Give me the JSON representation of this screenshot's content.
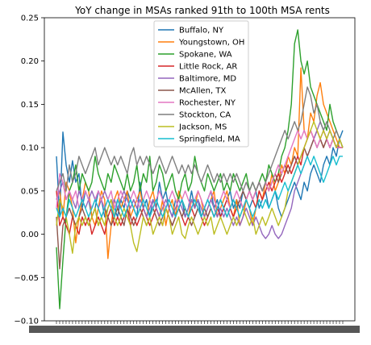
{
  "chart_data": {
    "type": "line",
    "title": "YoY change in MSAs ranked 91th to 100th MSA rents",
    "xlabel": "",
    "ylabel": "",
    "ylim": [
      -0.1,
      0.25
    ],
    "yticks": [
      -0.1,
      -0.05,
      0.0,
      0.05,
      0.1,
      0.15,
      0.2,
      0.25
    ],
    "ytick_labels": [
      "−0.10",
      "−0.05",
      "0.00",
      "0.05",
      "0.10",
      "0.15",
      "0.20",
      "0.25"
    ],
    "x_start": "2015-01",
    "x_end": "2022-03",
    "xtick_labels_note": "x tick labels are overlapping dates and illegible",
    "grid": false,
    "legend_position": "top-center",
    "series": [
      {
        "name": "Buffalo, NY",
        "color": "#1f77b4",
        "values": [
          0.09,
          0.02,
          0.118,
          0.08,
          0.06,
          0.085,
          0.06,
          0.07,
          0.03,
          0.05,
          0.04,
          0.02,
          0.03,
          0.05,
          0.04,
          0.02,
          0.03,
          0.04,
          0.03,
          0.02,
          0.04,
          0.03,
          0.05,
          0.04,
          0.03,
          0.02,
          0.06,
          0.03,
          0.04,
          0.02,
          0.04,
          0.03,
          0.06,
          0.04,
          0.05,
          0.03,
          0.02,
          0.04,
          0.03,
          0.04,
          0.02,
          0.03,
          0.05,
          0.03,
          0.04,
          0.02,
          0.03,
          0.04,
          0.05,
          0.03,
          0.04,
          0.02,
          0.03,
          0.04,
          0.05,
          0.03,
          0.04,
          0.03,
          0.05,
          0.04,
          0.03,
          0.04,
          0.05,
          0.03,
          0.04,
          0.05,
          0.03,
          0.04,
          0.05,
          0.03,
          0.02,
          0.03,
          0.04,
          0.05,
          0.06,
          0.05,
          0.04,
          0.06,
          0.05,
          0.07,
          0.08,
          0.07,
          0.06,
          0.08,
          0.09,
          0.08,
          0.1,
          0.09,
          0.11,
          0.12
        ]
      },
      {
        "name": "Youngstown, OH",
        "color": "#ff7f0e",
        "values": [
          0.04,
          0.05,
          0.02,
          0.06,
          0.05,
          0.03,
          -0.01,
          0.02,
          0.04,
          0.06,
          0.05,
          0.02,
          0.01,
          0.03,
          0.05,
          0.04,
          -0.028,
          0.01,
          0.04,
          0.05,
          0.03,
          0.04,
          0.05,
          0.02,
          0.03,
          0.04,
          0.05,
          0.03,
          0.02,
          0.04,
          0.05,
          0.03,
          0.02,
          0.04,
          0.01,
          0.03,
          0.04,
          0.02,
          0.05,
          0.04,
          0.03,
          0.02,
          0.04,
          0.03,
          0.05,
          0.04,
          0.02,
          0.03,
          0.04,
          0.05,
          0.02,
          0.03,
          0.04,
          0.05,
          0.03,
          0.02,
          0.04,
          0.01,
          0.02,
          0.04,
          0.03,
          0.01,
          0.03,
          0.05,
          0.04,
          0.06,
          0.05,
          0.07,
          0.05,
          0.06,
          0.08,
          0.07,
          0.09,
          0.08,
          0.1,
          0.09,
          0.192,
          0.12,
          0.11,
          0.14,
          0.13,
          0.16,
          0.175,
          0.15,
          0.14,
          0.13,
          0.12,
          0.11,
          0.1,
          0.1
        ]
      },
      {
        "name": "Spokane, WA",
        "color": "#2ca02c",
        "values": [
          -0.015,
          -0.086,
          -0.03,
          0.02,
          0.05,
          0.06,
          0.08,
          0.05,
          0.07,
          0.06,
          0.05,
          0.06,
          0.09,
          0.07,
          0.06,
          0.05,
          0.07,
          0.06,
          0.08,
          0.07,
          0.06,
          0.05,
          0.07,
          0.05,
          0.06,
          0.08,
          0.05,
          0.07,
          0.06,
          0.09,
          0.05,
          0.06,
          0.08,
          0.07,
          0.05,
          0.06,
          0.07,
          0.05,
          0.04,
          0.06,
          0.07,
          0.05,
          0.06,
          0.09,
          0.07,
          0.06,
          0.05,
          0.07,
          0.06,
          0.05,
          0.06,
          0.07,
          0.05,
          0.06,
          0.05,
          0.07,
          0.06,
          0.05,
          0.06,
          0.07,
          0.05,
          0.06,
          0.05,
          0.06,
          0.07,
          0.06,
          0.08,
          0.07,
          0.06,
          0.07,
          0.09,
          0.1,
          0.12,
          0.15,
          0.22,
          0.236,
          0.2,
          0.185,
          0.2,
          0.17,
          0.16,
          0.15,
          0.14,
          0.13,
          0.12,
          0.15,
          0.13,
          0.12,
          0.11,
          0.1
        ]
      },
      {
        "name": "Little Rock, AR",
        "color": "#d62728",
        "values": [
          0.05,
          0.01,
          0.02,
          0.01,
          0.0,
          0.02,
          0.01,
          0.0,
          0.02,
          0.01,
          0.02,
          0.0,
          0.01,
          0.02,
          0.01,
          0.0,
          0.02,
          0.03,
          0.01,
          0.02,
          0.01,
          0.02,
          0.03,
          0.01,
          0.02,
          0.01,
          0.02,
          0.03,
          0.02,
          0.01,
          0.02,
          0.03,
          0.02,
          0.01,
          0.03,
          0.02,
          0.01,
          0.02,
          0.03,
          0.02,
          0.01,
          0.02,
          0.03,
          0.02,
          0.03,
          0.02,
          0.01,
          0.02,
          0.03,
          0.02,
          0.03,
          0.02,
          0.03,
          0.04,
          0.03,
          0.02,
          0.03,
          0.04,
          0.03,
          0.04,
          0.05,
          0.04,
          0.03,
          0.05,
          0.04,
          0.05,
          0.06,
          0.05,
          0.06,
          0.07,
          0.06,
          0.07,
          0.08,
          0.07,
          0.08,
          0.09,
          0.08,
          0.1,
          0.11,
          0.12,
          0.11,
          0.12,
          0.11,
          0.1,
          0.11,
          0.1,
          0.11,
          0.1,
          0.1,
          0.1
        ]
      },
      {
        "name": "Baltimore, MD",
        "color": "#9467bd",
        "values": [
          0.04,
          0.05,
          0.06,
          0.04,
          0.05,
          0.04,
          0.03,
          0.05,
          0.04,
          0.03,
          0.04,
          0.05,
          0.04,
          0.03,
          0.04,
          0.05,
          0.04,
          0.03,
          0.04,
          0.03,
          0.04,
          0.05,
          0.04,
          0.03,
          0.04,
          0.03,
          0.04,
          0.03,
          0.02,
          0.03,
          0.04,
          0.03,
          0.02,
          0.03,
          0.04,
          0.03,
          0.02,
          0.03,
          0.04,
          0.03,
          0.02,
          0.03,
          0.04,
          0.03,
          0.04,
          0.03,
          0.02,
          0.03,
          0.04,
          0.03,
          0.02,
          0.03,
          0.02,
          0.03,
          0.02,
          0.01,
          0.02,
          0.01,
          0.02,
          0.03,
          0.02,
          0.01,
          0.02,
          0.01,
          0.0,
          -0.005,
          0.0,
          0.01,
          0.0,
          -0.005,
          0.0,
          0.01,
          0.02,
          0.03,
          0.05,
          0.06,
          0.07,
          0.08,
          0.09,
          0.1,
          0.11,
          0.12,
          0.13,
          0.12,
          0.11,
          0.12,
          0.11,
          0.1,
          0.11,
          0.1
        ]
      },
      {
        "name": "McAllen, TX",
        "color": "#8c564b",
        "values": [
          0.02,
          -0.04,
          0.01,
          0.02,
          0.03,
          0.02,
          0.01,
          0.02,
          0.03,
          0.02,
          0.01,
          0.02,
          0.03,
          0.01,
          0.02,
          0.03,
          0.02,
          0.01,
          0.02,
          0.03,
          0.02,
          0.01,
          0.03,
          0.02,
          0.01,
          0.02,
          0.03,
          0.02,
          0.01,
          0.02,
          0.03,
          0.02,
          0.01,
          0.02,
          0.03,
          0.02,
          0.01,
          0.02,
          0.03,
          0.02,
          0.03,
          0.02,
          0.01,
          0.02,
          0.03,
          0.02,
          0.03,
          0.02,
          0.03,
          0.02,
          0.03,
          0.04,
          0.03,
          0.02,
          0.03,
          0.04,
          0.03,
          0.04,
          0.05,
          0.04,
          0.05,
          0.04,
          0.05,
          0.06,
          0.05,
          0.06,
          0.05,
          0.06,
          0.07,
          0.06,
          0.07,
          0.08,
          0.07,
          0.08,
          0.09,
          0.08,
          0.09,
          0.1,
          0.09,
          0.1,
          0.11,
          0.1,
          0.11,
          0.1,
          0.11,
          0.1,
          0.11,
          0.1,
          0.1,
          0.1
        ]
      },
      {
        "name": "Rochester, NY",
        "color": "#e377c2",
        "values": [
          0.03,
          0.07,
          0.06,
          0.04,
          0.05,
          0.04,
          0.05,
          0.03,
          0.04,
          0.05,
          0.04,
          0.03,
          0.04,
          0.05,
          0.04,
          0.03,
          0.04,
          0.05,
          0.03,
          0.04,
          0.05,
          0.04,
          0.03,
          0.04,
          0.05,
          0.04,
          0.03,
          0.04,
          0.05,
          0.04,
          0.03,
          0.04,
          0.05,
          0.04,
          0.03,
          0.04,
          0.05,
          0.04,
          0.03,
          0.04,
          0.05,
          0.04,
          0.03,
          0.04,
          0.05,
          0.04,
          0.03,
          0.04,
          0.05,
          0.04,
          0.03,
          0.04,
          0.05,
          0.04,
          0.03,
          0.04,
          0.05,
          0.04,
          0.03,
          0.04,
          0.05,
          0.04,
          0.05,
          0.06,
          0.05,
          0.06,
          0.05,
          0.06,
          0.07,
          0.08,
          0.07,
          0.08,
          0.09,
          0.1,
          0.11,
          0.12,
          0.11,
          0.12,
          0.11,
          0.12,
          0.11,
          0.1,
          0.11,
          0.12,
          0.11,
          0.1,
          0.11,
          0.1,
          0.1,
          0.1
        ]
      },
      {
        "name": "Stockton, CA",
        "color": "#7f7f7f",
        "values": [
          0.05,
          0.06,
          0.07,
          0.05,
          0.08,
          0.06,
          0.07,
          0.09,
          0.08,
          0.07,
          0.08,
          0.09,
          0.1,
          0.08,
          0.09,
          0.1,
          0.09,
          0.08,
          0.09,
          0.08,
          0.09,
          0.08,
          0.07,
          0.09,
          0.1,
          0.08,
          0.09,
          0.08,
          0.09,
          0.08,
          0.07,
          0.08,
          0.09,
          0.08,
          0.07,
          0.08,
          0.09,
          0.08,
          0.07,
          0.08,
          0.07,
          0.08,
          0.07,
          0.08,
          0.07,
          0.06,
          0.07,
          0.08,
          0.07,
          0.06,
          0.07,
          0.06,
          0.07,
          0.06,
          0.07,
          0.06,
          0.07,
          0.06,
          0.05,
          0.06,
          0.05,
          0.06,
          0.05,
          0.06,
          0.05,
          0.06,
          0.07,
          0.08,
          0.09,
          0.1,
          0.11,
          0.12,
          0.11,
          0.12,
          0.13,
          0.12,
          0.13,
          0.15,
          0.17,
          0.16,
          0.14,
          0.15,
          0.13,
          0.12,
          0.13,
          0.12,
          0.11,
          0.12,
          0.11,
          0.1
        ]
      },
      {
        "name": "Jackson, MS",
        "color": "#bcbd22",
        "values": [
          0.01,
          0.04,
          0.03,
          0.02,
          0.0,
          -0.022,
          0.01,
          0.02,
          0.01,
          0.02,
          0.01,
          0.02,
          0.03,
          0.01,
          0.02,
          0.01,
          0.03,
          0.04,
          0.02,
          0.01,
          0.02,
          0.03,
          0.02,
          0.01,
          -0.01,
          -0.02,
          0.0,
          0.02,
          0.01,
          0.02,
          0.0,
          0.01,
          0.02,
          0.01,
          0.03,
          0.02,
          0.0,
          0.01,
          0.02,
          0.0,
          -0.005,
          0.01,
          0.02,
          0.01,
          0.0,
          0.01,
          0.02,
          0.01,
          0.02,
          0.0,
          0.01,
          0.02,
          0.01,
          0.0,
          0.01,
          0.02,
          0.01,
          0.02,
          0.03,
          0.02,
          0.01,
          0.02,
          0.0,
          0.01,
          0.02,
          0.01,
          0.02,
          0.03,
          0.02,
          0.01,
          0.02,
          0.03,
          0.05,
          0.06,
          0.07,
          0.08,
          0.09,
          0.1,
          0.11,
          0.12,
          0.13,
          0.12,
          0.11,
          0.12,
          0.11,
          0.12,
          0.11,
          0.1,
          0.11,
          0.1
        ]
      },
      {
        "name": "Springfield, MA",
        "color": "#17becf",
        "values": [
          0.03,
          0.02,
          0.03,
          0.02,
          0.04,
          0.03,
          0.02,
          0.03,
          0.04,
          0.03,
          0.02,
          0.03,
          0.04,
          0.03,
          0.02,
          0.03,
          0.04,
          0.03,
          0.02,
          0.04,
          0.03,
          0.02,
          0.03,
          0.04,
          0.03,
          0.02,
          0.03,
          0.04,
          0.03,
          0.02,
          0.03,
          0.04,
          0.03,
          0.02,
          0.03,
          0.04,
          0.03,
          0.02,
          0.03,
          0.04,
          0.03,
          0.02,
          0.03,
          0.04,
          0.03,
          0.02,
          0.03,
          0.04,
          0.03,
          0.02,
          0.03,
          0.04,
          0.03,
          0.02,
          0.03,
          0.04,
          0.03,
          0.02,
          0.03,
          0.04,
          0.03,
          0.02,
          0.03,
          0.04,
          0.03,
          0.04,
          0.03,
          0.04,
          0.05,
          0.04,
          0.05,
          0.06,
          0.05,
          0.06,
          0.07,
          0.08,
          0.07,
          0.08,
          0.09,
          0.08,
          0.09,
          0.08,
          0.07,
          0.06,
          0.07,
          0.08,
          0.09,
          0.08,
          0.09,
          0.09
        ]
      }
    ]
  }
}
